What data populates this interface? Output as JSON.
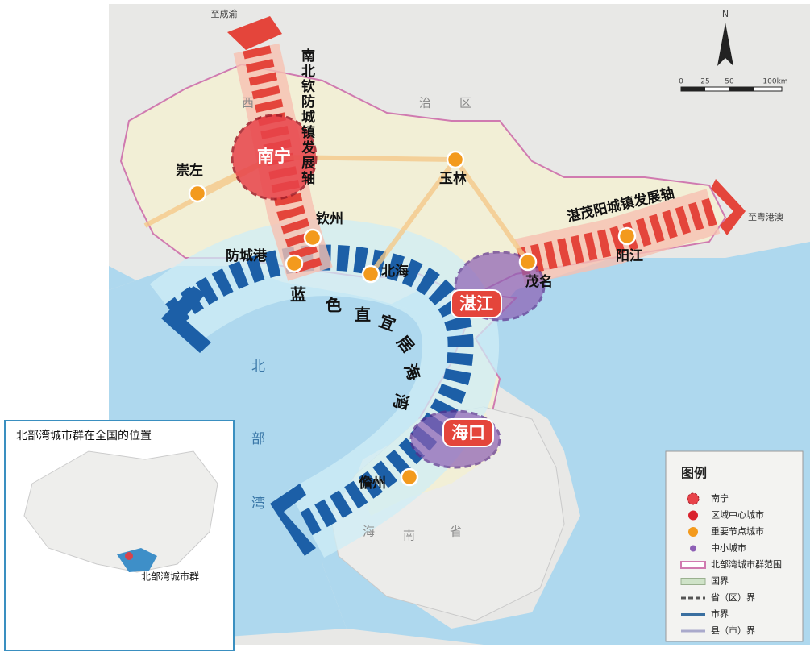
{
  "map": {
    "directions": {
      "to_chengyu": "至成渝",
      "to_yuegangao": "至粤港澳"
    },
    "axes": {
      "nanbeiqinfang": "南北钦防城镇发展轴",
      "zhanmaoyang": "湛茂阳城镇发展轴"
    },
    "bay_axis": [
      "蓝",
      "色",
      "直",
      "宜",
      "居",
      "海",
      "湾"
    ],
    "cities": {
      "nanning": "南宁",
      "chongzuo": "崇左",
      "qinzhou": "钦州",
      "yulin": "玉林",
      "fangchenggang": "防城港",
      "beihai": "北海",
      "maoming": "茂名",
      "zhanjiang": "湛江",
      "yangjiang": "阳江",
      "haikou": "海口",
      "danzhou": "儋州"
    },
    "region_labels": {
      "guangxi": [
        "西",
        "治",
        "区"
      ],
      "hainan": [
        "海",
        "南",
        "省"
      ]
    },
    "sea_label": [
      "北",
      "部",
      "湾"
    ],
    "compass": "N",
    "scale": [
      "0",
      "25",
      "50",
      "100km"
    ],
    "inset": {
      "title": "北部湾城市群在全国的位置",
      "label": "北部湾城市群"
    },
    "legend": {
      "title": "图例",
      "items": [
        "南宁",
        "区域中心城市",
        "重要节点城市",
        "中小城市",
        "北部湾城市群范围",
        "国界",
        "省（区）界",
        "市界",
        "县（市）界"
      ]
    }
  }
}
